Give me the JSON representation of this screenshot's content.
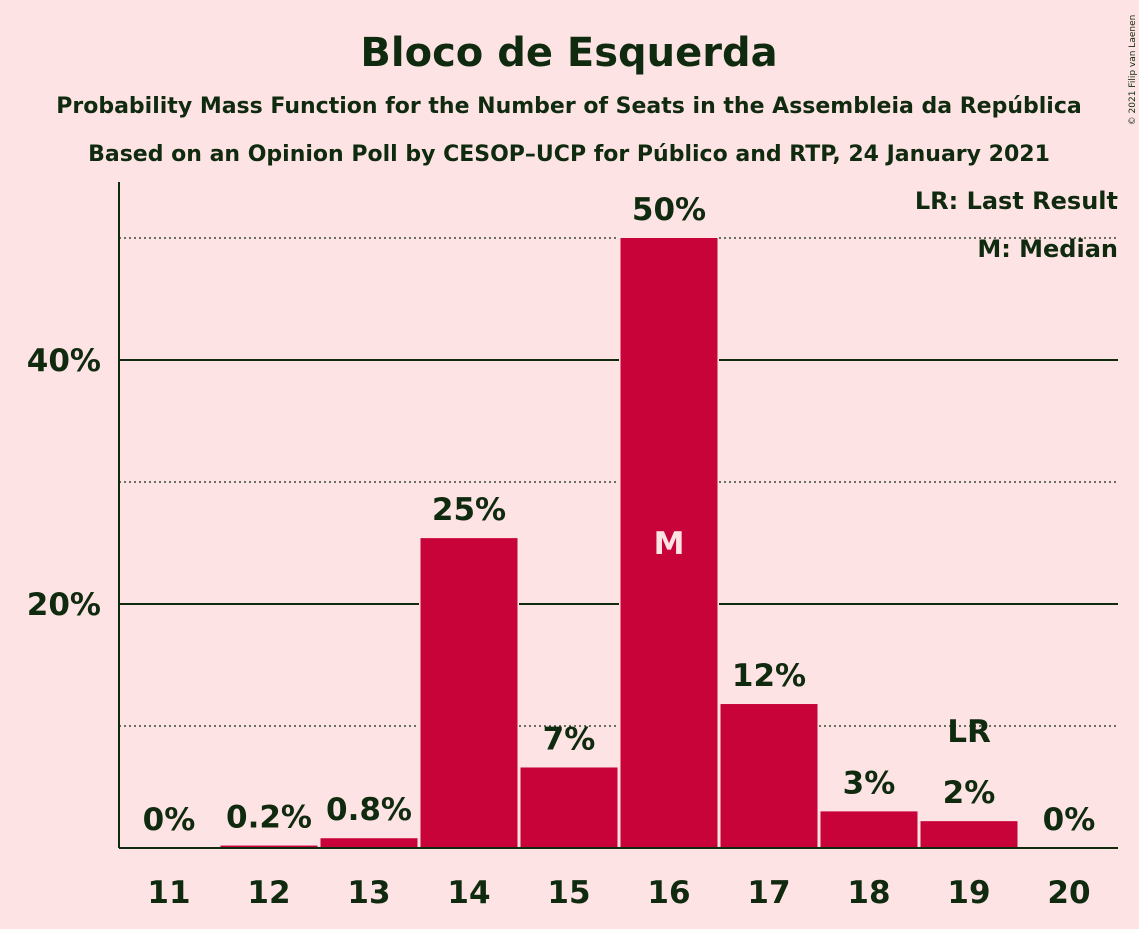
{
  "title": "Bloco de Esquerda",
  "subtitle1": "Probability Mass Function for the Number of Seats in the Assembleia da República",
  "subtitle2": "Based on an Opinion Poll by CESOP–UCP for Público and RTP, 24 January 2021",
  "copyright": "© 2021 Filip van Laenen",
  "legend": {
    "lr": "LR: Last Result",
    "m": "M: Median"
  },
  "colors": {
    "bar": "#c8033a",
    "text": "#0f2a0f",
    "background": "#fde3e3"
  },
  "chart_data": {
    "type": "bar",
    "categories": [
      "11",
      "12",
      "13",
      "14",
      "15",
      "16",
      "17",
      "18",
      "19",
      "20"
    ],
    "values": [
      0,
      0.2,
      0.8,
      25.4,
      6.6,
      50,
      11.8,
      3,
      2.2,
      0
    ],
    "data_labels": [
      "0%",
      "0.2%",
      "0.8%",
      "25%",
      "7%",
      "50%",
      "12%",
      "3%",
      "2%",
      "0%"
    ],
    "ylim": [
      0,
      54.5
    ],
    "y_ticks": [
      20,
      40
    ],
    "y_tick_labels": [
      "20%",
      "40%"
    ],
    "dotted_gridlines": [
      10,
      30,
      50
    ],
    "median": {
      "category": "16",
      "marker": "M"
    },
    "last_result": {
      "category": "19",
      "marker": "LR"
    }
  }
}
